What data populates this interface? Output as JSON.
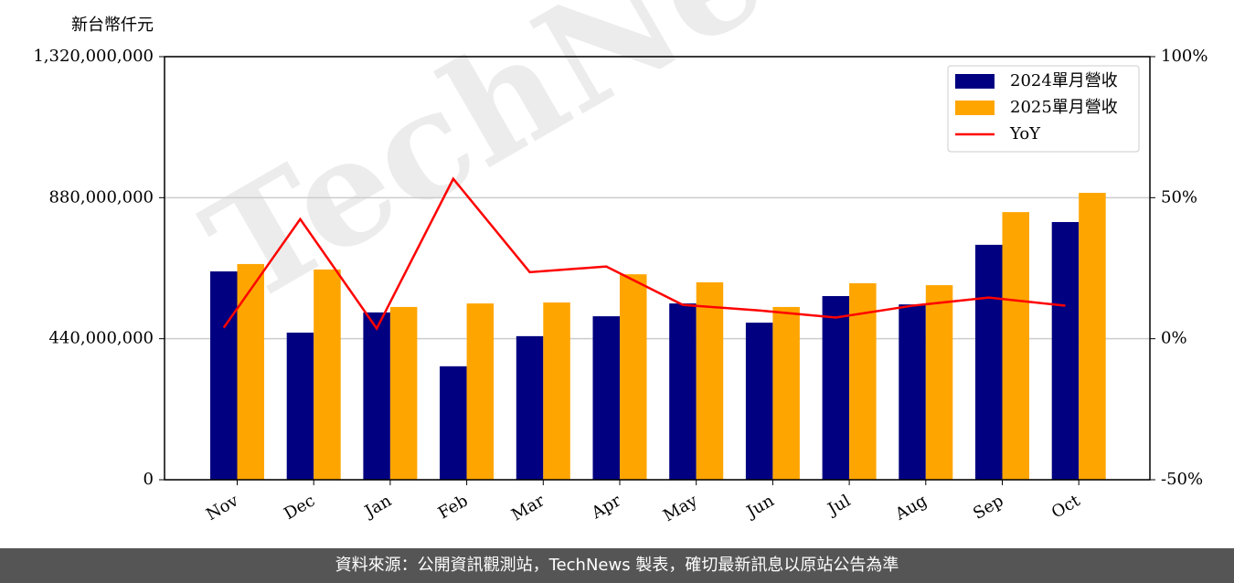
{
  "chart_data": {
    "type": "bar",
    "ylabel": "新台幣仟元",
    "watermark": "TechNews",
    "footer": "資料來源：公開資訊觀測站，TechNews 製表，確切最新訊息以原站公告為準",
    "categories": [
      "Nov",
      "Dec",
      "Jan",
      "Feb",
      "Mar",
      "Apr",
      "May",
      "Jun",
      "Jul",
      "Aug",
      "Sep",
      "Oct"
    ],
    "series": [
      {
        "name": "2024單月營收",
        "type": "bar",
        "color": "#000080",
        "values": [
          650000000,
          459000000,
          522000000,
          354000000,
          448000000,
          510000000,
          550000000,
          490000000,
          573000000,
          547000000,
          733000000,
          804000000
        ]
      },
      {
        "name": "2025單月營收",
        "type": "bar",
        "color": "#ffa500",
        "values": [
          673000000,
          656000000,
          539000000,
          550000000,
          553000000,
          641000000,
          616000000,
          539000000,
          613000000,
          607000000,
          835000000,
          895000000
        ]
      },
      {
        "name": "YoY",
        "type": "line",
        "axis": "y2",
        "color": "#ff0000",
        "values": [
          3.9,
          42.4,
          3.6,
          56.7,
          23.6,
          25.6,
          12.0,
          10.0,
          7.5,
          11.7,
          14.6,
          11.7
        ]
      }
    ],
    "ylim": [
      0,
      1320000000
    ],
    "yticks": [
      0,
      {
        "value": 440000000,
        "label": "440,000,000"
      },
      {
        "value": 880000000,
        "label": "880,000,000"
      },
      {
        "value": 1320000000,
        "label": "1,320,000,000"
      }
    ],
    "y2lim": [
      -50,
      100
    ],
    "y2ticks": [
      {
        "value": -50,
        "label": "-50%"
      },
      {
        "value": 0,
        "label": "0%"
      },
      {
        "value": 50,
        "label": "50%"
      },
      {
        "value": 100,
        "label": "100%"
      }
    ],
    "grid": true,
    "legend": "upper right"
  }
}
